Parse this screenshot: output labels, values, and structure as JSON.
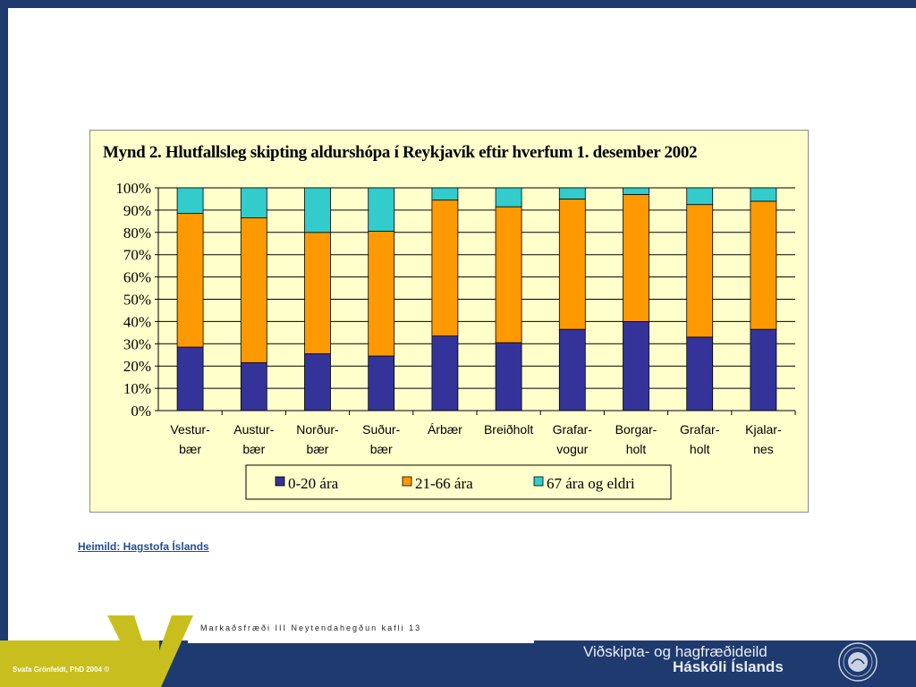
{
  "chart_data": {
    "type": "bar",
    "stacked": true,
    "title": "Mynd 2. Hlutfallsleg skipting aldurshópa í Reykjavík eftir hverfum 1. desember 2002",
    "categories": [
      [
        "Vestur-",
        "bær"
      ],
      [
        "Austur-",
        "bær"
      ],
      [
        "Norður-",
        "bær"
      ],
      [
        "Suður-",
        "bær"
      ],
      [
        "Árbær"
      ],
      [
        "Breiðholt"
      ],
      [
        "Grafar-",
        "vogur"
      ],
      [
        "Borgar-",
        "holt"
      ],
      [
        "Grafar-",
        "holt"
      ],
      [
        "Kjalar-",
        "nes"
      ]
    ],
    "series": [
      {
        "name": "0-20 ára",
        "color": "#333399",
        "values": [
          28.5,
          21.5,
          25.5,
          24.5,
          33.5,
          30.5,
          36.5,
          40,
          33,
          36.5
        ]
      },
      {
        "name": "21-66 ára",
        "color": "#ff9900",
        "values": [
          60,
          65,
          54.5,
          56,
          61,
          61,
          58.5,
          57,
          59.5,
          57.5
        ]
      },
      {
        "name": "67 ára og eldri",
        "color": "#33cccc",
        "values": [
          11.5,
          13.5,
          20,
          19.5,
          5.5,
          8.5,
          5,
          3,
          7.5,
          6
        ]
      }
    ],
    "yticks": [
      "0%",
      "10%",
      "20%",
      "30%",
      "40%",
      "50%",
      "60%",
      "70%",
      "80%",
      "90%",
      "100%"
    ],
    "ylim": [
      0,
      100
    ],
    "grid": true,
    "legend_position": "bottom"
  },
  "source": "Heimild: Hagstofa Íslands",
  "footer": "Markaðsfræði III Neytendahegðun kafli 13",
  "author": "Svafa Grönfeldt, PhD 2004 ©",
  "department": "Viðskipta- og hagfræðideild",
  "university": "Háskóli Íslands",
  "logo_letter": "V",
  "colors": {
    "navy": "#1f3a6e",
    "olive": "#c8bf1e",
    "chart_bg": "#ffffcc"
  }
}
